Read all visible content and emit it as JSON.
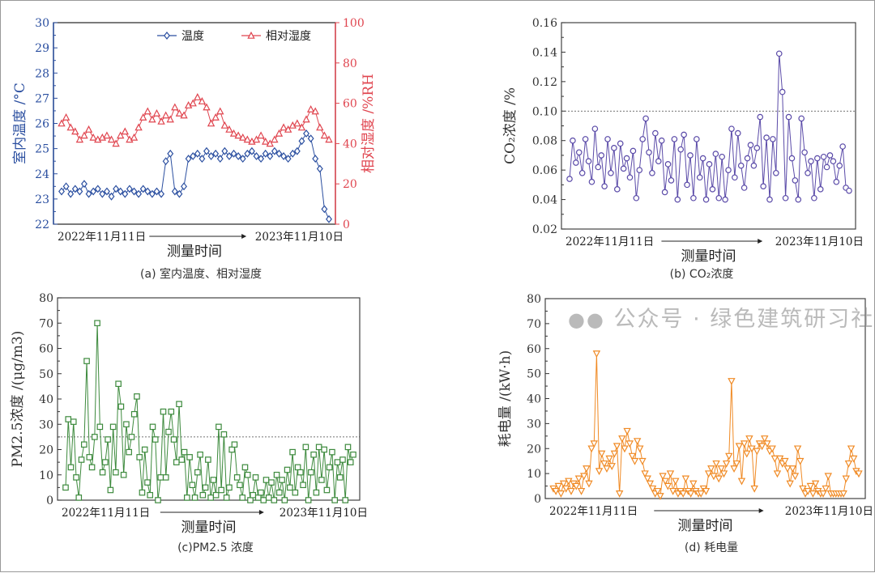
{
  "chart_data": [
    {
      "id": "a",
      "type": "line",
      "caption": "(a) 室内温度、相对湿度",
      "xlabel": "测量时间",
      "x_start_label": "2022年11月11日",
      "x_end_label": "2023年11月10日",
      "ylabel": "室内温度 /°C",
      "ylim": [
        22,
        30
      ],
      "yticks": [
        22,
        23,
        24,
        25,
        26,
        27,
        28,
        29,
        30
      ],
      "y2label": "相对湿度 /%RH",
      "y2lim": [
        0,
        100
      ],
      "y2ticks": [
        0,
        20,
        40,
        60,
        80,
        100
      ],
      "legend_placement": "top",
      "series": [
        {
          "name": "温度",
          "axis": "left",
          "color": "#2b4fa0",
          "marker": "diamond",
          "values": [
            23.3,
            23.5,
            23.2,
            23.4,
            23.3,
            23.6,
            23.2,
            23.3,
            23.4,
            23.2,
            23.3,
            23.1,
            23.4,
            23.3,
            23.2,
            23.4,
            23.3,
            23.2,
            23.4,
            23.3,
            23.2,
            23.3,
            23.2,
            24.5,
            24.8,
            23.3,
            23.2,
            23.5,
            24.6,
            24.7,
            24.8,
            24.6,
            24.9,
            24.7,
            24.8,
            24.6,
            24.9,
            24.7,
            24.8,
            24.7,
            24.6,
            24.8,
            24.9,
            24.7,
            24.6,
            24.8,
            24.7,
            24.9,
            24.8,
            24.7,
            24.6,
            24.8,
            24.9,
            25.3,
            25.6,
            25.4,
            24.6,
            24.2,
            22.6,
            22.2
          ]
        },
        {
          "name": "相对湿度",
          "axis": "right",
          "color": "#e0454f",
          "marker": "triangle-up",
          "values": [
            50,
            53,
            48,
            46,
            42,
            44,
            47,
            43,
            42,
            43,
            44,
            42,
            40,
            44,
            46,
            42,
            43,
            48,
            53,
            56,
            52,
            55,
            51,
            54,
            52,
            58,
            55,
            54,
            59,
            60,
            63,
            61,
            58,
            50,
            53,
            56,
            49,
            47,
            45,
            44,
            43,
            42,
            41,
            42,
            44,
            41,
            40,
            42,
            45,
            48,
            47,
            49,
            50,
            48,
            52,
            57,
            56,
            48,
            44,
            42
          ]
        }
      ]
    },
    {
      "id": "b",
      "type": "line",
      "caption": "(b) CO₂浓度",
      "xlabel": "测量时间",
      "x_start_label": "2022年11月11日",
      "x_end_label": "2023年11月10日",
      "ylabel": "CO₂浓度 /%",
      "ylim": [
        0.02,
        0.16
      ],
      "yticks": [
        "0.02",
        "0.04",
        "0.06",
        "0.08",
        "0.10",
        "0.12",
        "0.14",
        "0.16"
      ],
      "reference_line": 0.1,
      "series": [
        {
          "color": "#5a4aa8",
          "marker": "circle",
          "values": [
            0.054,
            0.08,
            0.065,
            0.072,
            0.058,
            0.081,
            0.066,
            0.052,
            0.088,
            0.062,
            0.07,
            0.049,
            0.081,
            0.058,
            0.075,
            0.047,
            0.078,
            0.061,
            0.068,
            0.055,
            0.073,
            0.041,
            0.06,
            0.081,
            0.095,
            0.072,
            0.058,
            0.085,
            0.066,
            0.08,
            0.045,
            0.064,
            0.053,
            0.081,
            0.04,
            0.074,
            0.084,
            0.05,
            0.07,
            0.041,
            0.081,
            0.055,
            0.068,
            0.04,
            0.064,
            0.047,
            0.071,
            0.041,
            0.069,
            0.04,
            0.06,
            0.088,
            0.055,
            0.085,
            0.063,
            0.048,
            0.068,
            0.077,
            0.063,
            0.075,
            0.096,
            0.049,
            0.082,
            0.04,
            0.081,
            0.058,
            0.139,
            0.113,
            0.041,
            0.096,
            0.068,
            0.053,
            0.04,
            0.095,
            0.072,
            0.058,
            0.066,
            0.041,
            0.068,
            0.047,
            0.069,
            0.062,
            0.07,
            0.066,
            0.052,
            0.063,
            0.076,
            0.048,
            0.046
          ]
        }
      ]
    },
    {
      "id": "c",
      "type": "line",
      "caption": "(c)PM2.5 浓度",
      "xlabel": "测量时间",
      "x_start_label": "2022年11月11日",
      "x_end_label": "2023年11月10日",
      "ylabel": "PM2.5浓度 /(μg/m3)",
      "ylim": [
        0,
        80
      ],
      "yticks": [
        0,
        10,
        20,
        30,
        40,
        50,
        60,
        70,
        80
      ],
      "reference_line": 25,
      "series": [
        {
          "color": "#3d8a3d",
          "marker": "square",
          "values": [
            5,
            32,
            13,
            31,
            9,
            1,
            16,
            22,
            55,
            17,
            13,
            25,
            70,
            29,
            11,
            15,
            24,
            4,
            29,
            11,
            46,
            37,
            10,
            30,
            19,
            25,
            34,
            41,
            17,
            3,
            20,
            7,
            2,
            29,
            24,
            0,
            9,
            35,
            9,
            27,
            35,
            24,
            15,
            38,
            16,
            19,
            1,
            17,
            6,
            1,
            11,
            18,
            2,
            5,
            16,
            1,
            8,
            2,
            29,
            4,
            26,
            1,
            5,
            20,
            22,
            9,
            6,
            1,
            13,
            10,
            0,
            2,
            9,
            1,
            3,
            0,
            8,
            1,
            7,
            0,
            10,
            3,
            8,
            0,
            12,
            5,
            19,
            3,
            13,
            11,
            6,
            21,
            0,
            11,
            18,
            3,
            21,
            8,
            20,
            4,
            13,
            19,
            0,
            15,
            9,
            16,
            0,
            21,
            15,
            18
          ]
        }
      ]
    },
    {
      "id": "d",
      "type": "line",
      "caption": "(d) 耗电量",
      "xlabel": "测量时间",
      "x_start_label": "2022年11月11日",
      "x_end_label": "2023年11月10日",
      "ylabel": "耗电量 /(kW·h)",
      "ylim": [
        0,
        80
      ],
      "yticks": [
        0,
        10,
        20,
        30,
        40,
        50,
        60,
        70,
        80
      ],
      "series": [
        {
          "color": "#f08a24",
          "marker": "triangle-down",
          "values": [
            4,
            3,
            5,
            2,
            6,
            4,
            7,
            3,
            6,
            5,
            8,
            3,
            9,
            12,
            6,
            20,
            22,
            58,
            11,
            18,
            14,
            12,
            16,
            13,
            18,
            21,
            2,
            24,
            20,
            27,
            22,
            17,
            15,
            23,
            20,
            15,
            10,
            8,
            6,
            4,
            2,
            3,
            1,
            9,
            7,
            5,
            10,
            3,
            7,
            2,
            3,
            2,
            8,
            3,
            2,
            6,
            3,
            2,
            2,
            4,
            3,
            10,
            12,
            9,
            14,
            8,
            12,
            10,
            14,
            17,
            47,
            12,
            14,
            21,
            7,
            22,
            18,
            24,
            20,
            4,
            19,
            22,
            21,
            24,
            22,
            19,
            20,
            16,
            10,
            16,
            14,
            15,
            12,
            6,
            12,
            9,
            20,
            15,
            4,
            2,
            3,
            5,
            2,
            6,
            3,
            2,
            2,
            4,
            9,
            2,
            2,
            2,
            2,
            2,
            2,
            8,
            14,
            20,
            16,
            11,
            10
          ]
        }
      ]
    }
  ],
  "watermark": "公众号 · 绿色建筑研习社"
}
